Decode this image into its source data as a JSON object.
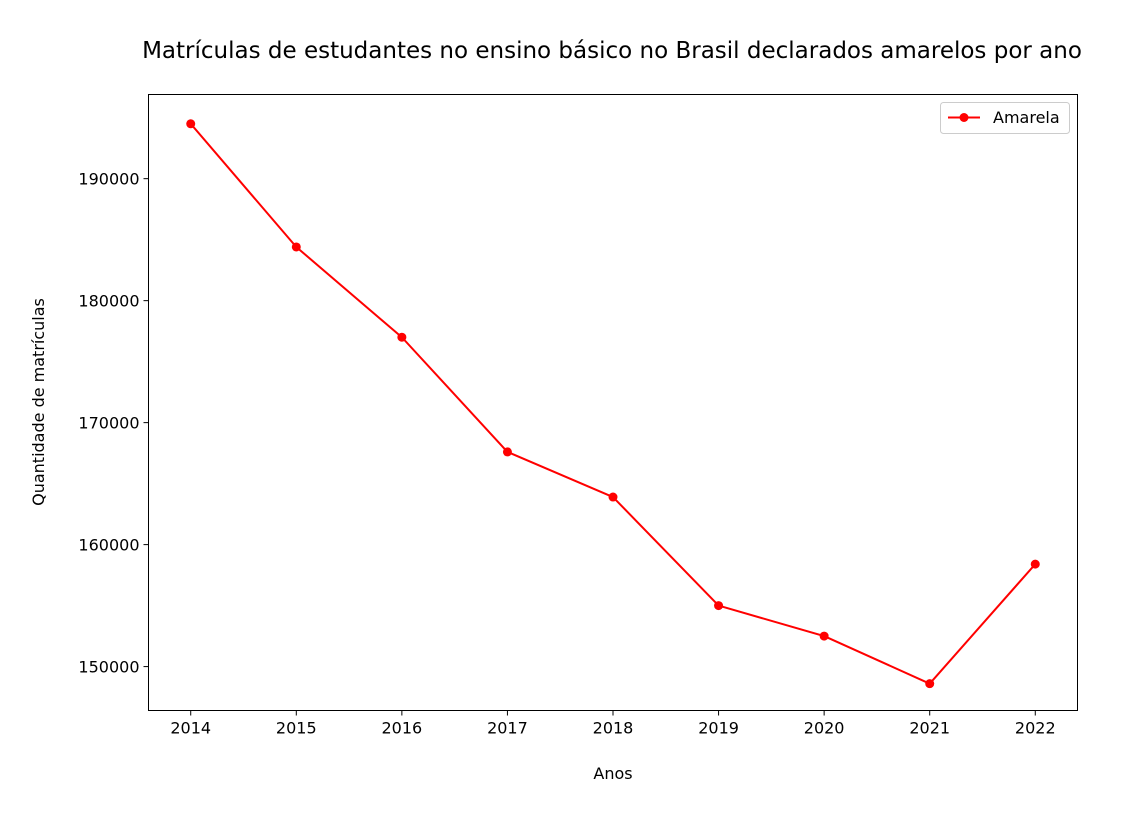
{
  "chart_data": {
    "type": "line",
    "title": "Matrículas de estudantes no ensino básico no Brasil declarados amarelos por ano",
    "xlabel": "Anos",
    "ylabel": "Quantidade de matrículas",
    "x": [
      2014,
      2015,
      2016,
      2017,
      2018,
      2019,
      2020,
      2021,
      2022
    ],
    "x_tick_labels": [
      "2014",
      "2015",
      "2016",
      "2017",
      "2018",
      "2019",
      "2020",
      "2021",
      "2022"
    ],
    "y_ticks": [
      150000,
      160000,
      170000,
      180000,
      190000
    ],
    "y_tick_labels": [
      "150000",
      "160000",
      "170000",
      "180000",
      "190000"
    ],
    "xlim": [
      2013.6,
      2022.4
    ],
    "ylim": [
      146400,
      196900
    ],
    "grid": false,
    "legend_position": "top-right",
    "series": [
      {
        "name": "Amarela",
        "color": "#ff0000",
        "marker": "circle",
        "values": [
          194500,
          184400,
          177000,
          167600,
          163900,
          155000,
          152500,
          148600,
          158400
        ]
      }
    ]
  }
}
